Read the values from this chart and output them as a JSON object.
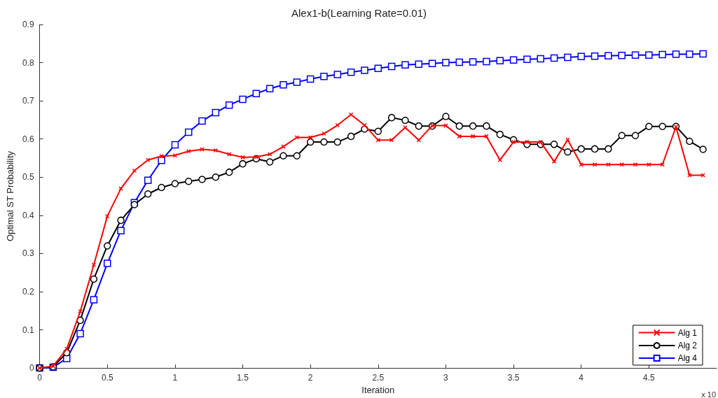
{
  "chart_data": {
    "type": "line",
    "title": "Alex1-b(Learning Rate=0.01)",
    "xlabel": "Iteration",
    "ylabel": "Optimal ST Probability",
    "annotations": [
      "x 10"
    ],
    "x": [
      0,
      0.1,
      0.2,
      0.3,
      0.4,
      0.5,
      0.6,
      0.7,
      0.8,
      0.9,
      1,
      1.1,
      1.2,
      1.3,
      1.4,
      1.5,
      1.6,
      1.7,
      1.8,
      1.9,
      2,
      2.1,
      2.2,
      2.3,
      2.4,
      2.5,
      2.6,
      2.7,
      2.8,
      2.9,
      3,
      3.1,
      3.2,
      3.3,
      3.4,
      3.5,
      3.6,
      3.7,
      3.8,
      3.9,
      4,
      4.1,
      4.2,
      4.3,
      4.4,
      4.5,
      4.6,
      4.7,
      4.8,
      4.9
    ],
    "series": [
      {
        "name": "Alg 1",
        "color": "#ff0000",
        "marker": "cross",
        "values": [
          0,
          0.005,
          0.05,
          0.148,
          0.27,
          0.398,
          0.47,
          0.517,
          0.545,
          0.555,
          0.557,
          0.568,
          0.573,
          0.57,
          0.56,
          0.552,
          0.553,
          0.56,
          0.58,
          0.604,
          0.604,
          0.614,
          0.636,
          0.664,
          0.636,
          0.597,
          0.597,
          0.63,
          0.597,
          0.635,
          0.635,
          0.607,
          0.607,
          0.607,
          0.545,
          0.592,
          0.592,
          0.592,
          0.541,
          0.598,
          0.533,
          0.533,
          0.533,
          0.533,
          0.533,
          0.533,
          0.533,
          0.632,
          0.505,
          0.505
        ]
      },
      {
        "name": "Alg 2",
        "color": "#000000",
        "marker": "circle",
        "values": [
          0,
          0.003,
          0.04,
          0.125,
          0.233,
          0.32,
          0.387,
          0.428,
          0.456,
          0.473,
          0.483,
          0.489,
          0.494,
          0.5,
          0.513,
          0.535,
          0.548,
          0.54,
          0.556,
          0.556,
          0.592,
          0.592,
          0.592,
          0.607,
          0.626,
          0.62,
          0.656,
          0.649,
          0.634,
          0.634,
          0.659,
          0.634,
          0.634,
          0.634,
          0.612,
          0.598,
          0.586,
          0.586,
          0.586,
          0.566,
          0.574,
          0.574,
          0.574,
          0.609,
          0.609,
          0.633,
          0.633,
          0.633,
          0.594,
          0.573
        ]
      },
      {
        "name": "Alg 4",
        "color": "#0000ff",
        "marker": "square",
        "values": [
          0,
          0.002,
          0.025,
          0.09,
          0.179,
          0.274,
          0.36,
          0.433,
          0.492,
          0.544,
          0.585,
          0.618,
          0.647,
          0.669,
          0.689,
          0.704,
          0.719,
          0.732,
          0.742,
          0.749,
          0.757,
          0.764,
          0.769,
          0.775,
          0.78,
          0.785,
          0.79,
          0.794,
          0.796,
          0.798,
          0.8,
          0.801,
          0.802,
          0.803,
          0.805,
          0.807,
          0.809,
          0.81,
          0.812,
          0.814,
          0.816,
          0.817,
          0.818,
          0.819,
          0.82,
          0.82,
          0.821,
          0.822,
          0.822,
          0.823
        ]
      }
    ],
    "xlim": [
      0,
      5
    ],
    "xticks": [
      0,
      0.5,
      1,
      1.5,
      2,
      2.5,
      3,
      3.5,
      4,
      4.5
    ],
    "ylim": [
      0,
      0.9
    ],
    "yticks": [
      0,
      0.1,
      0.2,
      0.3,
      0.4,
      0.5,
      0.6,
      0.7,
      0.8,
      0.9
    ],
    "grid": false,
    "legend": "bottom right"
  }
}
